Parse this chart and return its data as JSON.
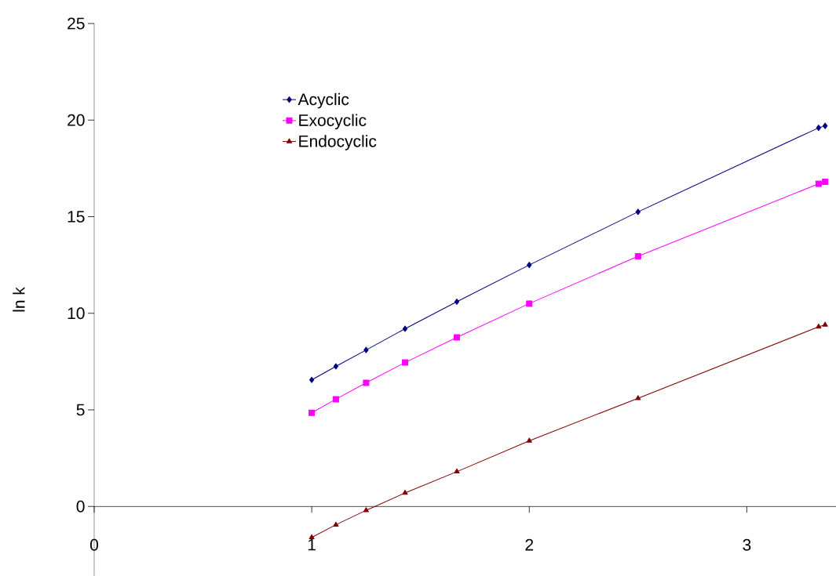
{
  "chart_data": {
    "type": "line",
    "ylabel": "ln k",
    "x": [
      1,
      1.111,
      1.25,
      1.429,
      1.667,
      2,
      2.5,
      3.33,
      3.36
    ],
    "series": [
      {
        "name": "Acyclic",
        "color": "#000080",
        "marker": "diamond",
        "values": [
          6.55,
          7.25,
          8.1,
          9.2,
          10.6,
          12.5,
          15.25,
          19.6,
          19.7
        ]
      },
      {
        "name": "Exocyclic",
        "color": "#ff00ff",
        "marker": "square",
        "values": [
          4.85,
          5.55,
          6.4,
          7.45,
          8.75,
          10.5,
          12.95,
          16.7,
          16.8
        ]
      },
      {
        "name": "Endocyclic",
        "color": "#800000",
        "marker": "triangle",
        "values": [
          -1.6,
          -0.95,
          -0.2,
          0.7,
          1.8,
          3.4,
          5.6,
          9.3,
          9.4
        ]
      }
    ],
    "xlim": [
      0,
      3.41
    ],
    "ylim": [
      -3.6,
      25
    ],
    "xticks": [
      0,
      1,
      2,
      3
    ],
    "yticks": [
      0,
      5,
      10,
      15,
      20,
      25
    ],
    "grid": false,
    "legend": "top"
  }
}
